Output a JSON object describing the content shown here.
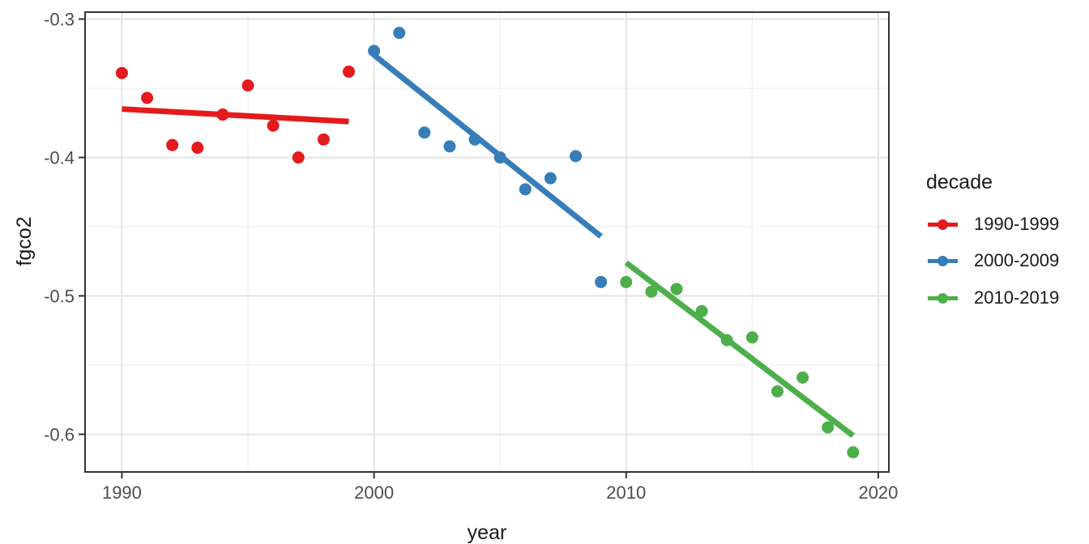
{
  "chart_data": {
    "type": "scatter",
    "title": "",
    "xlabel": "year",
    "ylabel": "fgco2",
    "xlim": [
      1988.54,
      2020.42
    ],
    "ylim": [
      -0.6272,
      -0.295
    ],
    "grid": true,
    "x_ticks": {
      "values": [
        1990,
        2000,
        2010,
        2020
      ],
      "labels": [
        "1990",
        "2000",
        "2010",
        "2020"
      ],
      "minor": [
        1995,
        2005,
        2015
      ]
    },
    "y_ticks": {
      "values": [
        -0.3,
        -0.4,
        -0.5,
        -0.6
      ],
      "labels": [
        "-0.3",
        "-0.4",
        "-0.5",
        "-0.6"
      ],
      "minor": [
        -0.35,
        -0.45,
        -0.55
      ]
    },
    "legend": {
      "title": "decade",
      "position": "right",
      "entries": [
        {
          "label": "1990-1999",
          "color": "#E41A1C"
        },
        {
          "label": "2000-2009",
          "color": "#377EB8"
        },
        {
          "label": "2010-2019",
          "color": "#4DAF4A"
        }
      ]
    },
    "series": [
      {
        "name": "1990-1999",
        "color": "#E41A1C",
        "points": [
          [
            1990,
            -0.339
          ],
          [
            1991,
            -0.357
          ],
          [
            1992,
            -0.391
          ],
          [
            1993,
            -0.393
          ],
          [
            1994,
            -0.369
          ],
          [
            1995,
            -0.348
          ],
          [
            1996,
            -0.377
          ],
          [
            1997,
            -0.4
          ],
          [
            1998,
            -0.387
          ],
          [
            1999,
            -0.338
          ]
        ],
        "trend": [
          [
            1990,
            -0.365
          ],
          [
            1999,
            -0.374
          ]
        ]
      },
      {
        "name": "2000-2009",
        "color": "#377EB8",
        "points": [
          [
            2000,
            -0.323
          ],
          [
            2001,
            -0.31
          ],
          [
            2002,
            -0.382
          ],
          [
            2003,
            -0.392
          ],
          [
            2004,
            -0.387
          ],
          [
            2005,
            -0.4
          ],
          [
            2006,
            -0.423
          ],
          [
            2007,
            -0.415
          ],
          [
            2008,
            -0.399
          ],
          [
            2009,
            -0.49
          ]
        ],
        "trend": [
          [
            2000,
            -0.326
          ],
          [
            2009,
            -0.457
          ]
        ]
      },
      {
        "name": "2010-2019",
        "color": "#4DAF4A",
        "points": [
          [
            2010,
            -0.49
          ],
          [
            2011,
            -0.497
          ],
          [
            2012,
            -0.495
          ],
          [
            2013,
            -0.511
          ],
          [
            2014,
            -0.532
          ],
          [
            2015,
            -0.53
          ],
          [
            2016,
            -0.569
          ],
          [
            2017,
            -0.559
          ],
          [
            2018,
            -0.595
          ],
          [
            2019,
            -0.613
          ]
        ],
        "trend": [
          [
            2010,
            -0.476
          ],
          [
            2019,
            -0.601
          ]
        ]
      }
    ],
    "colors": {
      "background": "#ffffff",
      "panel_border": "#333333",
      "grid_major": "#e3e3e3",
      "grid_minor": "#f0f0f0",
      "tick": "#333333",
      "tick_label": "#4d4d4d",
      "text": "#1a1a1a"
    }
  }
}
